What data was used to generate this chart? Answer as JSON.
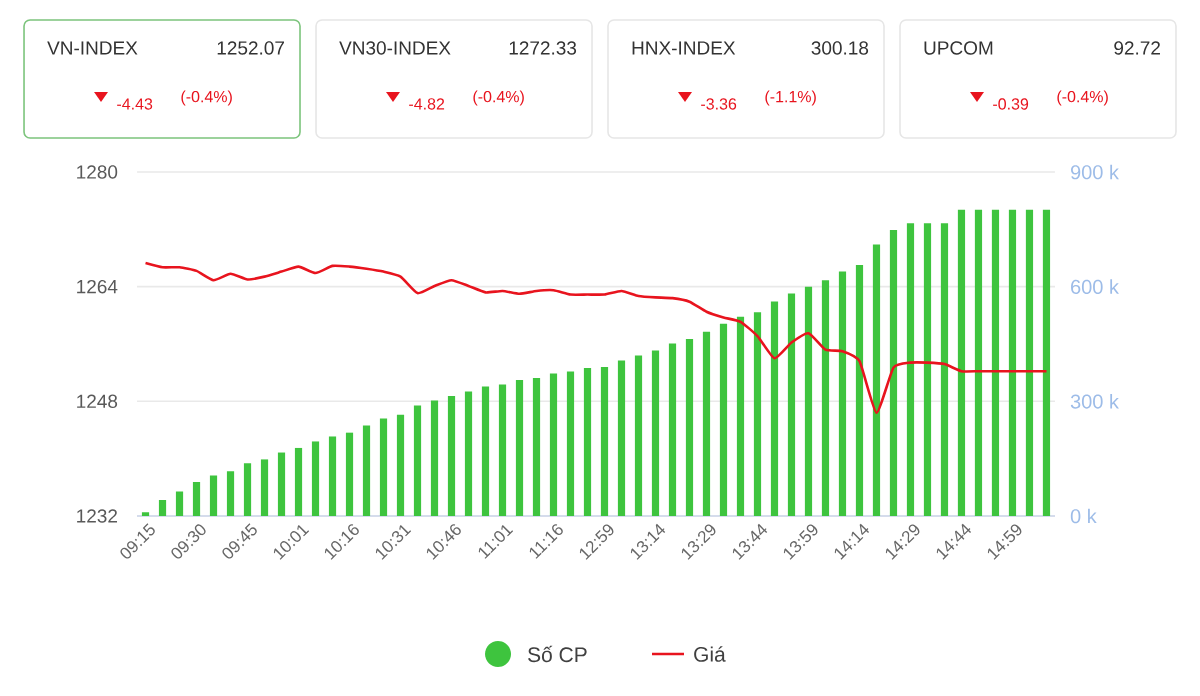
{
  "chart_data": [
    {
      "type": "other",
      "annotations": [
        "VN-INDEX",
        "1252.07",
        "-4.43",
        "(-0.4%)",
        "VN30-INDEX",
        "1272.33",
        "-4.82",
        "(-0.4%)",
        "HNX-INDEX",
        "300.18",
        "-3.36",
        "(-1.1%)",
        "UPCOM",
        "92.72",
        "-0.39",
        "(-0.4%)"
      ]
    },
    {
      "type": "bar",
      "categories": [
        "09:15",
        null,
        null,
        "09:30",
        null,
        null,
        "09:45",
        null,
        null,
        "10:01",
        null,
        null,
        "10:16",
        null,
        null,
        "10:31",
        null,
        null,
        "10:46",
        null,
        null,
        "11:01",
        null,
        null,
        "11:16",
        null,
        null,
        "12:59",
        null,
        null,
        "13:14",
        null,
        null,
        "13:29",
        null,
        null,
        "13:44",
        null,
        null,
        "13:59",
        null,
        null,
        "14:14",
        null,
        null,
        "14:29",
        null,
        null,
        "14:44",
        null,
        null,
        "14:59",
        null,
        null
      ],
      "series": [
        {
          "name": "Số CP",
          "type": "bar",
          "axis": "y2",
          "color": "#3ec43e",
          "values": [
            10000,
            42000,
            64000,
            89000,
            106000,
            117000,
            138000,
            148000,
            166000,
            178000,
            195000,
            208000,
            218000,
            237000,
            255000,
            265000,
            289000,
            302000,
            314000,
            326000,
            339000,
            344000,
            356000,
            361000,
            373000,
            378000,
            387000,
            390000,
            407000,
            420000,
            433000,
            451000,
            463000,
            482000,
            503000,
            521000,
            533000,
            561000,
            582000,
            600000,
            617000,
            640000,
            657000,
            710000,
            748000,
            766000,
            766000,
            766000,
            801000,
            801000,
            801000,
            801000,
            801000,
            801000
          ]
        },
        {
          "name": "Giá",
          "type": "line",
          "color": "#e8141e",
          "values": [
            1267.3,
            1266.7,
            1266.7,
            1266.2,
            1264.9,
            1265.8,
            1265.0,
            1265.4,
            1266.1,
            1266.8,
            1265.9,
            1266.9,
            1266.8,
            1266.5,
            1266.1,
            1265.4,
            1263.1,
            1264.1,
            1264.9,
            1264.1,
            1263.2,
            1263.4,
            1263.0,
            1263.4,
            1263.5,
            1262.9,
            1262.9,
            1262.9,
            1263.4,
            1262.7,
            1262.5,
            1262.4,
            1261.9,
            1260.5,
            1259.7,
            1259.1,
            1257.1,
            1254.0,
            1256.2,
            1257.5,
            1255.2,
            1255.0,
            1253.6,
            1246.4,
            1252.7,
            1253.4,
            1253.4,
            1253.2,
            1252.2,
            1252.2,
            1252.2,
            1252.2,
            1252.2,
            1252.2
          ]
        }
      ],
      "ylim": [
        1232,
        1280
      ],
      "yticks": [
        1232,
        1248,
        1264,
        1280
      ],
      "y2lim": [
        0,
        900000
      ],
      "y2ticks": [
        {
          "value": 0,
          "label": "0 k"
        },
        {
          "value": 300000,
          "label": "300 k"
        },
        {
          "value": 600000,
          "label": "600 k"
        },
        {
          "value": 900000,
          "label": "900 k"
        }
      ],
      "grid": "y",
      "legend": "bottom"
    }
  ]
}
